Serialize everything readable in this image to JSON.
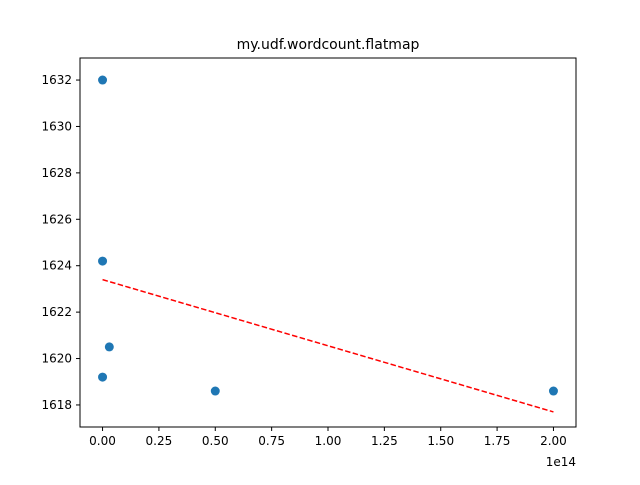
{
  "chart_data": {
    "type": "scatter",
    "title": "my.udf.wordcount.flatmap",
    "xlabel": "",
    "ylabel": "",
    "x_offset_label": "1e14",
    "xlim": [
      -0.1,
      2.1
    ],
    "ylim": [
      1617.05,
      1632.95
    ],
    "x_ticks": [
      0.0,
      0.25,
      0.5,
      0.75,
      1.0,
      1.25,
      1.5,
      1.75,
      2.0
    ],
    "x_tick_labels": [
      "0.00",
      "0.25",
      "0.50",
      "0.75",
      "1.00",
      "1.25",
      "1.50",
      "1.75",
      "2.00"
    ],
    "y_ticks": [
      1618,
      1620,
      1622,
      1624,
      1626,
      1628,
      1630,
      1632
    ],
    "y_tick_labels": [
      "1618",
      "1620",
      "1622",
      "1624",
      "1626",
      "1628",
      "1630",
      "1632"
    ],
    "grid": false,
    "series": [
      {
        "kind": "scatter",
        "color": "#1f77b4",
        "points": [
          {
            "x": 0.0,
            "y": 1632.0
          },
          {
            "x": 0.0,
            "y": 1624.2
          },
          {
            "x": 0.03,
            "y": 1620.5
          },
          {
            "x": 0.0,
            "y": 1619.2
          },
          {
            "x": 0.5,
            "y": 1618.6
          },
          {
            "x": 2.0,
            "y": 1618.6
          }
        ]
      },
      {
        "kind": "trend-line",
        "color": "#ff0000",
        "style": "dashed",
        "points": [
          {
            "x": 0.0,
            "y": 1623.4
          },
          {
            "x": 2.0,
            "y": 1617.7
          }
        ]
      }
    ]
  }
}
